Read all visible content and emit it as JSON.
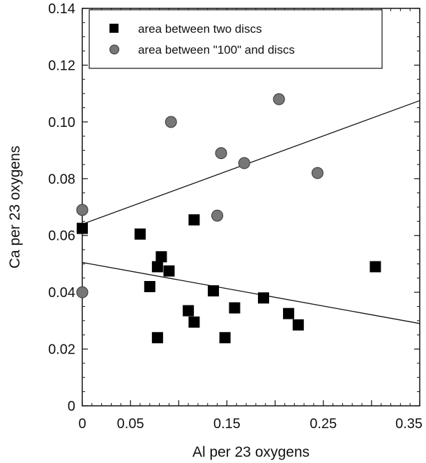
{
  "chart_data": {
    "type": "scatter",
    "title": "",
    "xlabel": "Al per 23 oxygens",
    "ylabel": "Ca per 23 oxygens",
    "xlim": [
      0,
      0.35
    ],
    "ylim": [
      0,
      0.14
    ],
    "x_ticks": [
      {
        "value": 0,
        "label": "0"
      },
      {
        "value": 0.05,
        "label": "0.05"
      },
      {
        "value": 0.15,
        "label": "0.15"
      },
      {
        "value": 0.25,
        "label": "0.25"
      },
      {
        "value": 0.35,
        "label": "0.35"
      }
    ],
    "y_ticks": [
      {
        "value": 0,
        "label": "0"
      },
      {
        "value": 0.02,
        "label": "0.02"
      },
      {
        "value": 0.04,
        "label": "0.04"
      },
      {
        "value": 0.06,
        "label": "0.06"
      },
      {
        "value": 0.08,
        "label": "0.08"
      },
      {
        "value": 0.1,
        "label": "0.10"
      },
      {
        "value": 0.12,
        "label": "0.12"
      },
      {
        "value": 0.14,
        "label": "0.14"
      }
    ],
    "grid": false,
    "legend_position": "top-right",
    "series": [
      {
        "name": "area between two discs",
        "marker": "square",
        "color": "#000000",
        "points": [
          {
            "x": 0.0,
            "y": 0.0625
          },
          {
            "x": 0.06,
            "y": 0.0605
          },
          {
            "x": 0.07,
            "y": 0.042
          },
          {
            "x": 0.078,
            "y": 0.049
          },
          {
            "x": 0.078,
            "y": 0.024
          },
          {
            "x": 0.082,
            "y": 0.0525
          },
          {
            "x": 0.09,
            "y": 0.0475
          },
          {
            "x": 0.11,
            "y": 0.0335
          },
          {
            "x": 0.116,
            "y": 0.0655
          },
          {
            "x": 0.116,
            "y": 0.0295
          },
          {
            "x": 0.136,
            "y": 0.0405
          },
          {
            "x": 0.148,
            "y": 0.024
          },
          {
            "x": 0.158,
            "y": 0.0345
          },
          {
            "x": 0.188,
            "y": 0.038
          },
          {
            "x": 0.214,
            "y": 0.0325
          },
          {
            "x": 0.224,
            "y": 0.0285
          },
          {
            "x": 0.304,
            "y": 0.049
          }
        ],
        "trend": {
          "x": [
            0,
            0.35
          ],
          "y": [
            0.0505,
            0.029
          ]
        }
      },
      {
        "name": "area between \"100\" and discs",
        "marker": "circle",
        "color": "#777777",
        "points": [
          {
            "x": 0.0,
            "y": 0.069
          },
          {
            "x": 0.0,
            "y": 0.04
          },
          {
            "x": 0.092,
            "y": 0.1
          },
          {
            "x": 0.14,
            "y": 0.067
          },
          {
            "x": 0.144,
            "y": 0.089
          },
          {
            "x": 0.168,
            "y": 0.0855
          },
          {
            "x": 0.204,
            "y": 0.108
          },
          {
            "x": 0.244,
            "y": 0.082
          }
        ],
        "trend": {
          "x": [
            0,
            0.35
          ],
          "y": [
            0.064,
            0.1075
          ]
        }
      }
    ]
  }
}
